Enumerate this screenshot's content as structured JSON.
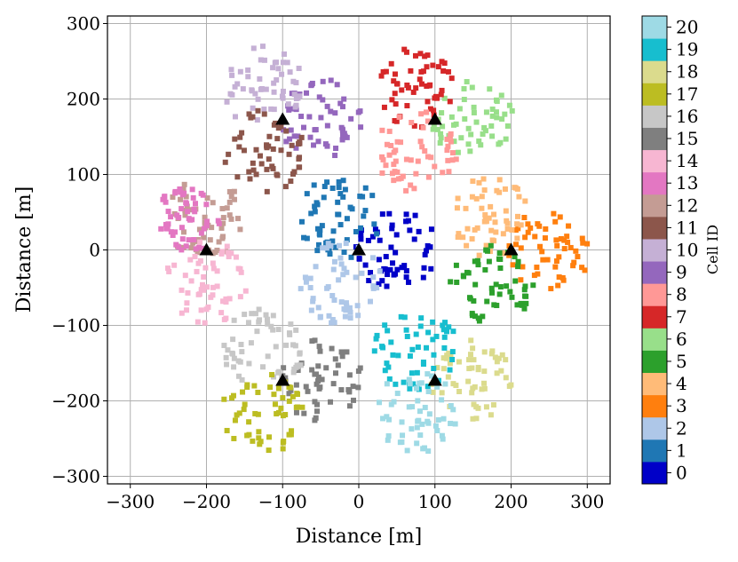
{
  "chart_data": {
    "type": "scatter",
    "xlabel": "Distance [m]",
    "ylabel": "Distance [m]",
    "xlim": [
      -330,
      330
    ],
    "ylim": [
      -310,
      310
    ],
    "x_ticks": [
      -300,
      -200,
      -100,
      0,
      100,
      200,
      300
    ],
    "y_ticks": [
      -300,
      -200,
      -100,
      0,
      100,
      200,
      300
    ],
    "x_tick_labels": [
      "−300",
      "−200",
      "−100",
      "0",
      "100",
      "200",
      "300"
    ],
    "y_tick_labels": [
      "−300",
      "−200",
      "−100",
      "0",
      "100",
      "200",
      "300"
    ],
    "grid": true,
    "colorbar": {
      "label": "Cell ID",
      "ticks": [
        "0",
        "1",
        "2",
        "3",
        "4",
        "5",
        "6",
        "7",
        "8",
        "9",
        "10",
        "11",
        "12",
        "13",
        "14",
        "15",
        "16",
        "17",
        "18",
        "19",
        "20"
      ],
      "colors": [
        "#0000c8",
        "#1f77b4",
        "#aec7e8",
        "#ff7f0e",
        "#ffbb78",
        "#2ca02c",
        "#98df8a",
        "#d62728",
        "#ff9896",
        "#9467bd",
        "#c5b0d5",
        "#8c564b",
        "#c49c94",
        "#e377c2",
        "#f7b6d2",
        "#7f7f7f",
        "#c7c7c7",
        "#bcbd22",
        "#dbdb8d",
        "#17becf",
        "#9edae5"
      ]
    },
    "base_stations": {
      "marker": "triangle",
      "x": [
        0,
        100,
        200,
        100,
        -100,
        -200,
        -100
      ],
      "y": [
        0,
        173,
        0,
        -173,
        -173,
        0,
        173
      ]
    },
    "clusters": [
      {
        "cell": 0,
        "center": [
          50,
          0
        ],
        "radius": 55
      },
      {
        "cell": 1,
        "center": [
          -25,
          43
        ],
        "radius": 55
      },
      {
        "cell": 2,
        "center": [
          -25,
          -43
        ],
        "radius": 55
      },
      {
        "cell": 3,
        "center": [
          250,
          0
        ],
        "radius": 55
      },
      {
        "cell": 4,
        "center": [
          175,
          43
        ],
        "radius": 55
      },
      {
        "cell": 5,
        "center": [
          175,
          -43
        ],
        "radius": 55
      },
      {
        "cell": 6,
        "center": [
          150,
          173
        ],
        "radius": 55
      },
      {
        "cell": 7,
        "center": [
          75,
          216
        ],
        "radius": 55
      },
      {
        "cell": 8,
        "center": [
          75,
          130
        ],
        "radius": 55
      },
      {
        "cell": 9,
        "center": [
          -50,
          173
        ],
        "radius": 55
      },
      {
        "cell": 10,
        "center": [
          -125,
          216
        ],
        "radius": 55
      },
      {
        "cell": 11,
        "center": [
          -125,
          130
        ],
        "radius": 55
      },
      {
        "cell": 12,
        "center": [
          -200,
          43
        ],
        "radius": 55
      },
      {
        "cell": 13,
        "center": [
          -225,
          40
        ],
        "radius": 45
      },
      {
        "cell": 14,
        "center": [
          -200,
          -43
        ],
        "radius": 55
      },
      {
        "cell": 15,
        "center": [
          -50,
          -173
        ],
        "radius": 55
      },
      {
        "cell": 16,
        "center": [
          -125,
          -130
        ],
        "radius": 55
      },
      {
        "cell": 17,
        "center": [
          -125,
          -216
        ],
        "radius": 55
      },
      {
        "cell": 18,
        "center": [
          150,
          -173
        ],
        "radius": 55
      },
      {
        "cell": 19,
        "center": [
          75,
          -130
        ],
        "radius": 55
      },
      {
        "cell": 20,
        "center": [
          75,
          -216
        ],
        "radius": 55
      }
    ],
    "points_per_cell": 55
  }
}
